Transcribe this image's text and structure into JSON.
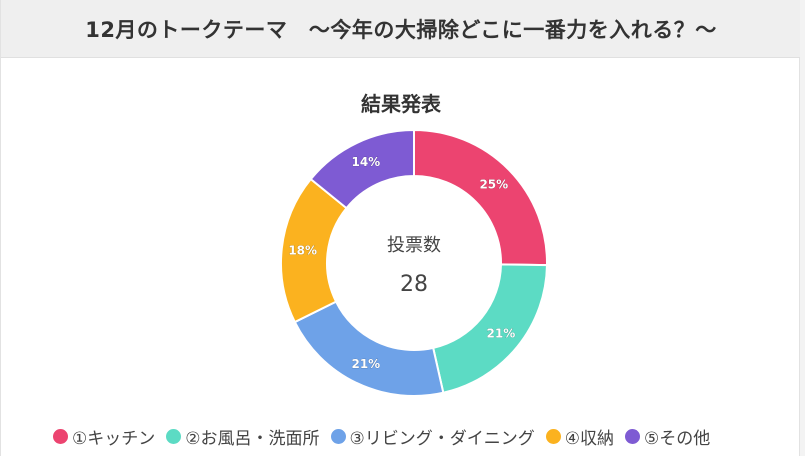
{
  "header": {
    "title": "12月のトークテーマ　～今年の大掃除どこに一番力を入れる？～"
  },
  "chart_data": {
    "type": "pie",
    "variant": "donut",
    "title": "結果発表",
    "center": {
      "label": "投票数",
      "value": "28"
    },
    "categories": [
      "①キッチン",
      "②お風呂・洗面所",
      "③リビング・ダイニング",
      "④収納",
      "⑤その他"
    ],
    "values": [
      25,
      21,
      21,
      18,
      14
    ],
    "value_labels": [
      "25%",
      "21%",
      "21%",
      "18%",
      "14%"
    ],
    "colors": [
      "#ec4470",
      "#5cdbc4",
      "#6ea2e8",
      "#fbb21f",
      "#7e5bd3"
    ],
    "legend_position": "bottom"
  }
}
